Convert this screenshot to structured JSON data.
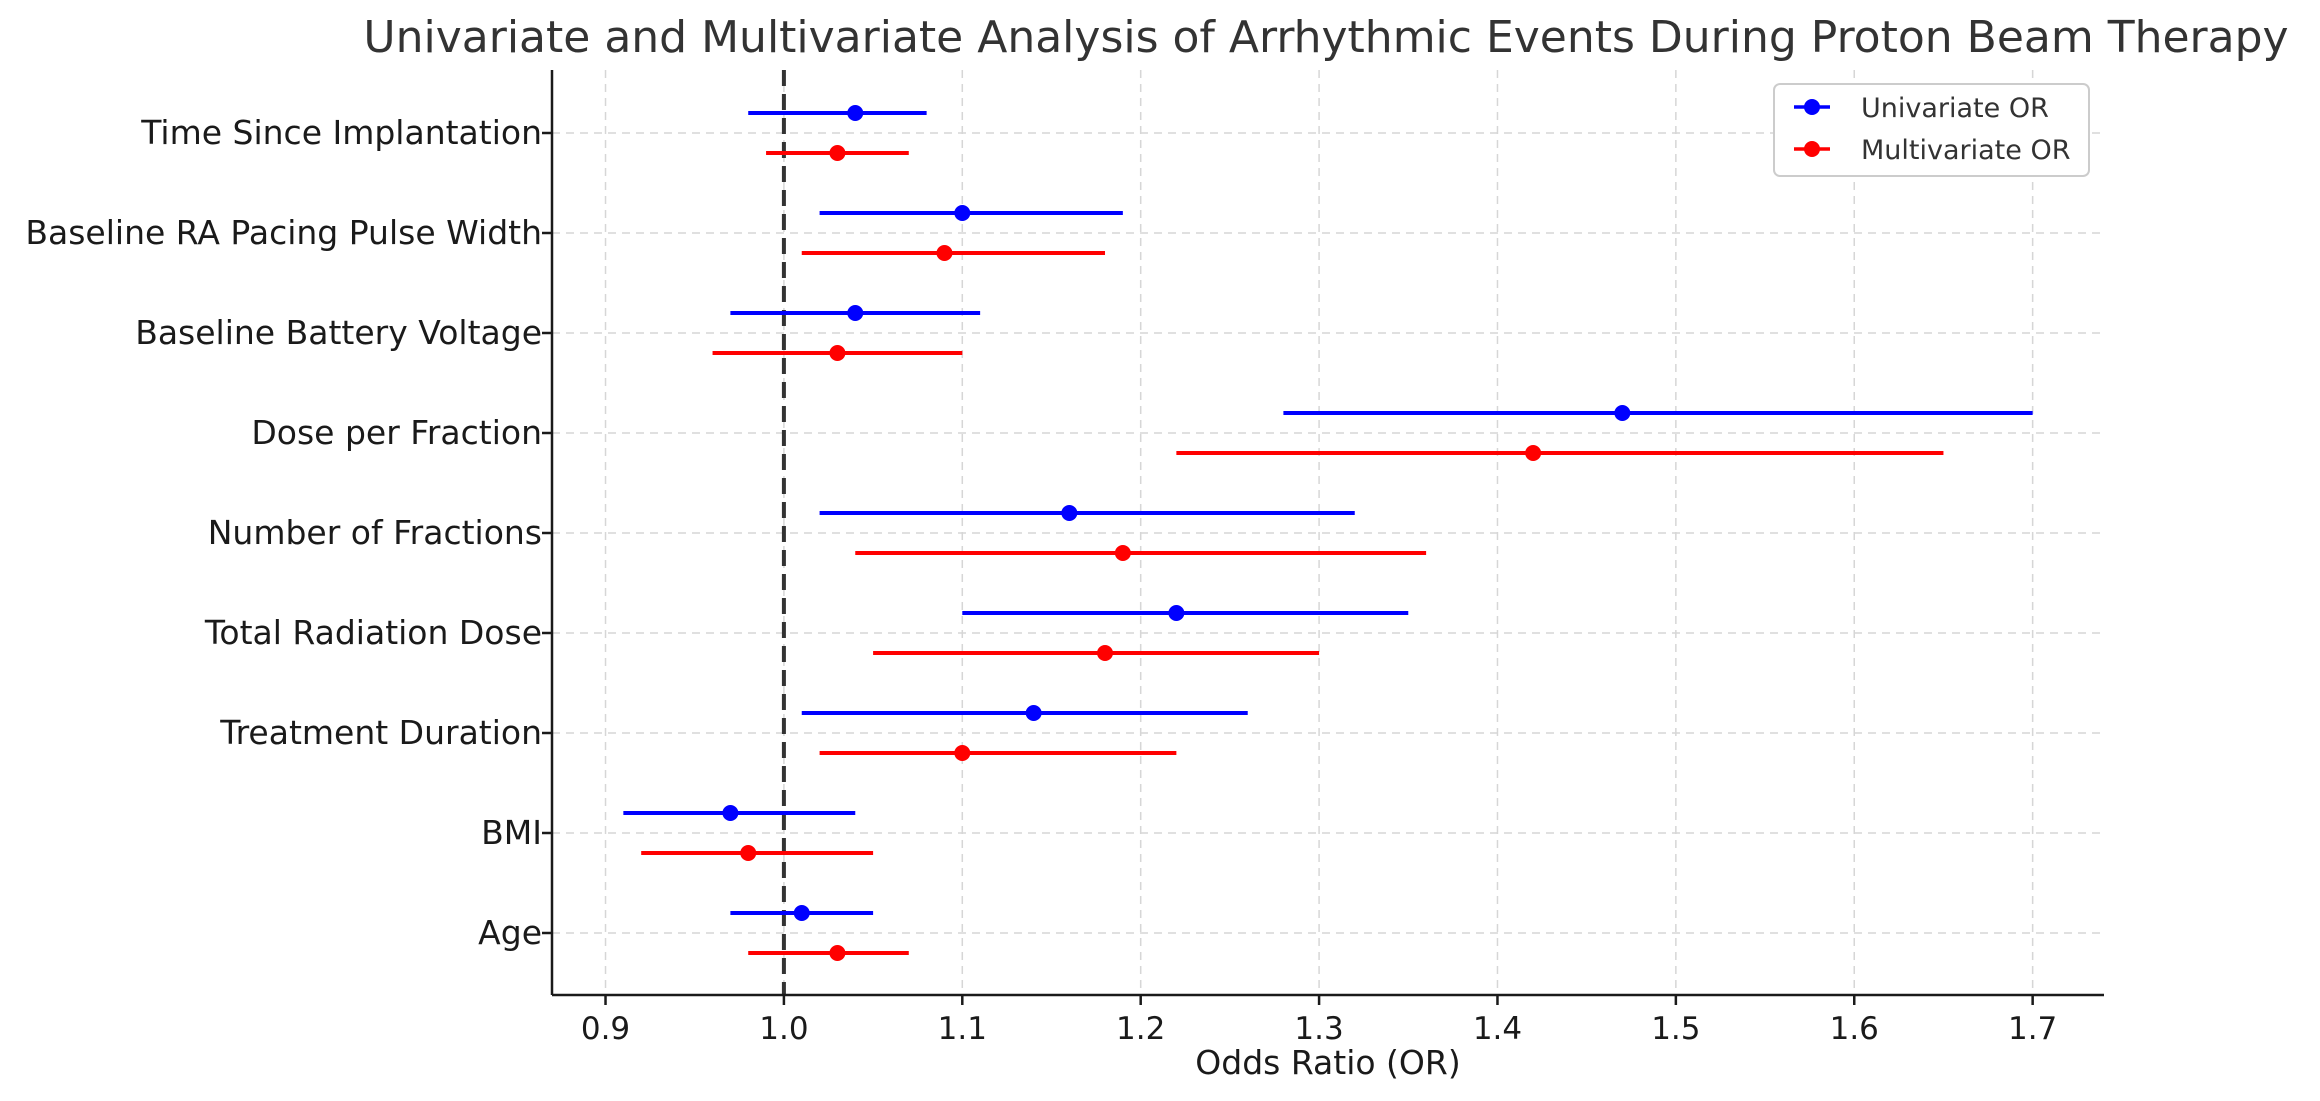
{
  "chart_data": {
    "type": "forest",
    "title": "Univariate and Multivariate Analysis of Arrhythmic Events During Proton Beam Therapy",
    "xlabel": "Odds Ratio (OR)",
    "ylabel": "",
    "xlim": [
      0.87,
      1.74
    ],
    "xticks": [
      0.9,
      1.0,
      1.1,
      1.2,
      1.3,
      1.4,
      1.5,
      1.6,
      1.7
    ],
    "xtick_labels": [
      "0.9",
      "1.0",
      "1.1",
      "1.2",
      "1.3",
      "1.4",
      "1.5",
      "1.6",
      "1.7"
    ],
    "reference_line": 1.0,
    "grid": true,
    "legend_position": "top-right",
    "categories": [
      "Time Since Implantation",
      "Baseline RA Pacing Pulse Width",
      "Baseline Battery Voltage",
      "Dose per Fraction",
      "Number of Fractions",
      "Total Radiation Dose",
      "Treatment Duration",
      "BMI",
      "Age"
    ],
    "series": [
      {
        "name": "Univariate OR",
        "color": "#0000ff",
        "or": [
          1.04,
          1.1,
          1.04,
          1.47,
          1.16,
          1.22,
          1.14,
          0.97,
          1.01
        ],
        "ci_low": [
          0.98,
          1.02,
          0.97,
          1.28,
          1.02,
          1.1,
          1.01,
          0.91,
          0.97
        ],
        "ci_high": [
          1.08,
          1.19,
          1.11,
          1.7,
          1.32,
          1.35,
          1.26,
          1.04,
          1.05
        ]
      },
      {
        "name": "Multivariate OR",
        "color": "#ff0000",
        "or": [
          1.03,
          1.09,
          1.03,
          1.42,
          1.19,
          1.18,
          1.1,
          0.98,
          1.03
        ],
        "ci_low": [
          0.99,
          1.01,
          0.96,
          1.22,
          1.04,
          1.05,
          1.02,
          0.92,
          0.98
        ],
        "ci_high": [
          1.07,
          1.18,
          1.1,
          1.65,
          1.36,
          1.3,
          1.22,
          1.05,
          1.07
        ]
      }
    ]
  }
}
